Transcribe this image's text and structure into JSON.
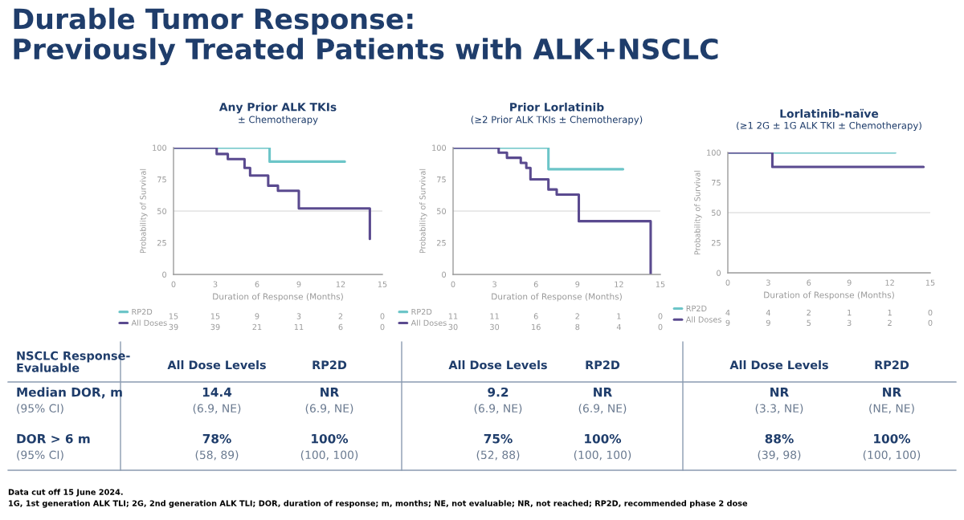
{
  "chart_data": [
    {
      "type": "step",
      "title": "Any Prior ALK TKIs",
      "subtitle": "± Chemotherapy",
      "xlabel": "Duration of Response (Months)",
      "ylabel": "Probability of Survival",
      "xlim": [
        0,
        15
      ],
      "ylim": [
        0,
        100
      ],
      "xticks": [
        0,
        3,
        6,
        9,
        12,
        15
      ],
      "yticks": [
        0,
        25,
        50,
        75,
        100
      ],
      "legend": "bottom left",
      "grid": false,
      "ref_lines": [
        {
          "axis": "y",
          "value": 50,
          "color": "#e2e2e2"
        }
      ],
      "series": [
        {
          "name": "RP2D",
          "color": "#6cc5c8",
          "x": [
            0,
            6.9,
            12.3
          ],
          "values": [
            100,
            89,
            89
          ]
        },
        {
          "name": "All Doses",
          "color": "#5a4a8f",
          "x": [
            0,
            3.1,
            3.9,
            5.1,
            5.5,
            6.8,
            7.5,
            9.0,
            14.1
          ],
          "values": [
            100,
            95,
            91,
            84,
            78,
            70,
            66,
            52,
            28
          ]
        }
      ],
      "annotations": [
        "15",
        "15",
        "9",
        "3",
        "2",
        "0",
        "39",
        "39",
        "21",
        "11",
        "6",
        "0"
      ]
    },
    {
      "type": "step",
      "title": "Prior Lorlatinib",
      "subtitle": "(≥2 Prior ALK TKIs ± Chemotherapy)",
      "xlabel": "Duration of Response (Months)",
      "ylabel": "Probability of Survival",
      "xlim": [
        0,
        15
      ],
      "ylim": [
        0,
        100
      ],
      "xticks": [
        0,
        3,
        6,
        9,
        12,
        15
      ],
      "yticks": [
        0,
        25,
        50,
        75,
        100
      ],
      "legend": "bottom left",
      "grid": false,
      "ref_lines": [
        {
          "axis": "y",
          "value": 50,
          "color": "#e2e2e2"
        }
      ],
      "series": [
        {
          "name": "RP2D",
          "color": "#6cc5c8",
          "x": [
            0,
            6.9,
            12.3
          ],
          "values": [
            100,
            83,
            83
          ]
        },
        {
          "name": "All Doses",
          "color": "#5a4a8f",
          "x": [
            0,
            3.3,
            3.9,
            4.9,
            5.3,
            5.6,
            6.9,
            7.5,
            9.1,
            14.3
          ],
          "values": [
            100,
            96,
            92,
            88,
            84,
            75,
            67,
            63,
            42,
            0
          ]
        }
      ],
      "annotations": [
        "11",
        "11",
        "6",
        "2",
        "1",
        "0",
        "30",
        "30",
        "16",
        "8",
        "4",
        "0"
      ]
    },
    {
      "type": "step",
      "title": "Lorlatinib-naïve",
      "subtitle": "(≥1 2G ± 1G ALK TKI ± Chemotherapy)",
      "xlabel": "Duration of Response (Months)",
      "ylabel": "Probability of Survival",
      "xlim": [
        0,
        15
      ],
      "ylim": [
        0,
        100
      ],
      "xticks": [
        0,
        3,
        6,
        9,
        12,
        15
      ],
      "yticks": [
        0,
        25,
        50,
        75,
        100
      ],
      "legend": "bottom left",
      "grid": false,
      "ref_lines": [
        {
          "axis": "y",
          "value": 50,
          "color": "#e2e2e2"
        }
      ],
      "series": [
        {
          "name": "RP2D",
          "color": "#6cc5c8",
          "x": [
            0,
            12.4
          ],
          "values": [
            100,
            100
          ]
        },
        {
          "name": "All Doses",
          "color": "#5a4a8f",
          "x": [
            0,
            3.3,
            14.5
          ],
          "values": [
            100,
            88,
            88
          ]
        }
      ],
      "annotations": [
        "4",
        "4",
        "2",
        "1",
        "1",
        "0",
        "9",
        "9",
        "5",
        "3",
        "2",
        "0"
      ]
    },
    {
      "type": "other",
      "title": "Durable Tumor Response:\nPreviously Treated Patients with ALK+NSCLC",
      "annotations": [
        "NSCLC Response-\nEvaluable",
        "All Dose Levels",
        "RP2D",
        "All Dose Levels",
        "RP2D",
        "All Dose Levels",
        "RP2D",
        "Median DOR, m\n(95% CI)",
        "14.4\n(6.9, NE)",
        "NR\n(6.9, NE)",
        "9.2\n(6.9, NE)",
        "NR\n(6.9, NE)",
        "NR\n(3.3, NE)",
        "NR\n(NE, NE)",
        "DOR > 6 m\n(95% CI)",
        "78%\n(58, 89)",
        "100%\n(100, 100)",
        "75%\n(52, 88)",
        "100%\n(100, 100)",
        "88%\n(39, 98)",
        "100%\n(100, 100)",
        "Data cut off 15 June 2024.",
        "1G, 1st generation ALK TLI; 2G, 2nd generation ALK TLI; DOR, duration of response; m, months; NE, not evaluable; NR, not reached; RP2D, recommended phase 2 dose"
      ]
    }
  ]
}
